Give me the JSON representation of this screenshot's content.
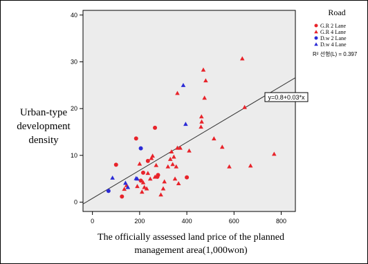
{
  "chart_data": {
    "type": "scatter",
    "xlabel": [
      "The officially assessed land price of the planned",
      "management area(1,000won)"
    ],
    "ylabel": [
      "Urban-type",
      "development",
      "density"
    ],
    "xlim": [
      -40,
      860
    ],
    "ylim": [
      -2,
      41
    ],
    "xticks": [
      "0",
      "200",
      "400",
      "600",
      "800"
    ],
    "xtick_values": [
      0,
      200,
      400,
      600,
      800
    ],
    "yticks": [
      "0",
      "10",
      "20",
      "30",
      "40"
    ],
    "ytick_values": [
      0,
      10,
      20,
      30,
      40
    ],
    "grid": false,
    "legend": {
      "title": "Road",
      "position": "right",
      "r2_text": "R² 선형(L) = 0.397"
    },
    "series": [
      {
        "name": "G.R 2 Lane",
        "color": "#e8232a",
        "marker": "circle",
        "points": [
          [
            100,
            8
          ],
          [
            125,
            1.2
          ],
          [
            185,
            13.6
          ],
          [
            205,
            4.6
          ],
          [
            215,
            6.3
          ],
          [
            235,
            8.8
          ],
          [
            265,
            15.9
          ],
          [
            275,
            5.4
          ],
          [
            278,
            5.8
          ],
          [
            400,
            5.3
          ]
        ]
      },
      {
        "name": "G.R 4 Lane",
        "color": "#e8232a",
        "marker": "triangle",
        "points": [
          [
            135,
            2.8
          ],
          [
            145,
            3.6
          ],
          [
            190,
            3.4
          ],
          [
            200,
            8.2
          ],
          [
            210,
            2.2
          ],
          [
            215,
            4.2
          ],
          [
            220,
            3.2
          ],
          [
            230,
            2.9
          ],
          [
            235,
            6.2
          ],
          [
            245,
            5.0
          ],
          [
            250,
            9.4
          ],
          [
            255,
            9.9
          ],
          [
            265,
            5.4
          ],
          [
            270,
            7.9
          ],
          [
            290,
            1.6
          ],
          [
            300,
            2.9
          ],
          [
            305,
            4.4
          ],
          [
            320,
            7.6
          ],
          [
            330,
            9.2
          ],
          [
            335,
            10.8
          ],
          [
            340,
            8.1
          ],
          [
            345,
            9.7
          ],
          [
            350,
            5.0
          ],
          [
            355,
            7.6
          ],
          [
            360,
            11.6
          ],
          [
            365,
            4.0
          ],
          [
            372,
            11.6
          ],
          [
            410,
            11.0
          ],
          [
            460,
            16.1
          ],
          [
            462,
            18.3
          ],
          [
            463,
            17.2
          ],
          [
            470,
            28.3
          ],
          [
            475,
            22.3
          ],
          [
            480,
            26.0
          ],
          [
            360,
            23.3
          ],
          [
            515,
            13.6
          ],
          [
            550,
            11.8
          ],
          [
            580,
            7.6
          ],
          [
            635,
            30.7
          ],
          [
            645,
            20.3
          ],
          [
            670,
            7.8
          ],
          [
            770,
            10.3
          ]
        ]
      },
      {
        "name": "D.w 2 Lane",
        "color": "#2b2bd6",
        "marker": "circle",
        "points": [
          [
            68,
            2.4
          ],
          [
            205,
            11.5
          ]
        ]
      },
      {
        "name": "D.w 4 Lane",
        "color": "#2b2bd6",
        "marker": "triangle",
        "points": [
          [
            85,
            5.2
          ],
          [
            140,
            4.1
          ],
          [
            150,
            3.2
          ],
          [
            185,
            5.1
          ],
          [
            190,
            5.0
          ],
          [
            385,
            25.0
          ],
          [
            395,
            16.7
          ]
        ]
      }
    ],
    "fit_line": {
      "equation": "y=0.8+0.03*x",
      "intercept": 0.8,
      "slope": 0.03
    }
  }
}
